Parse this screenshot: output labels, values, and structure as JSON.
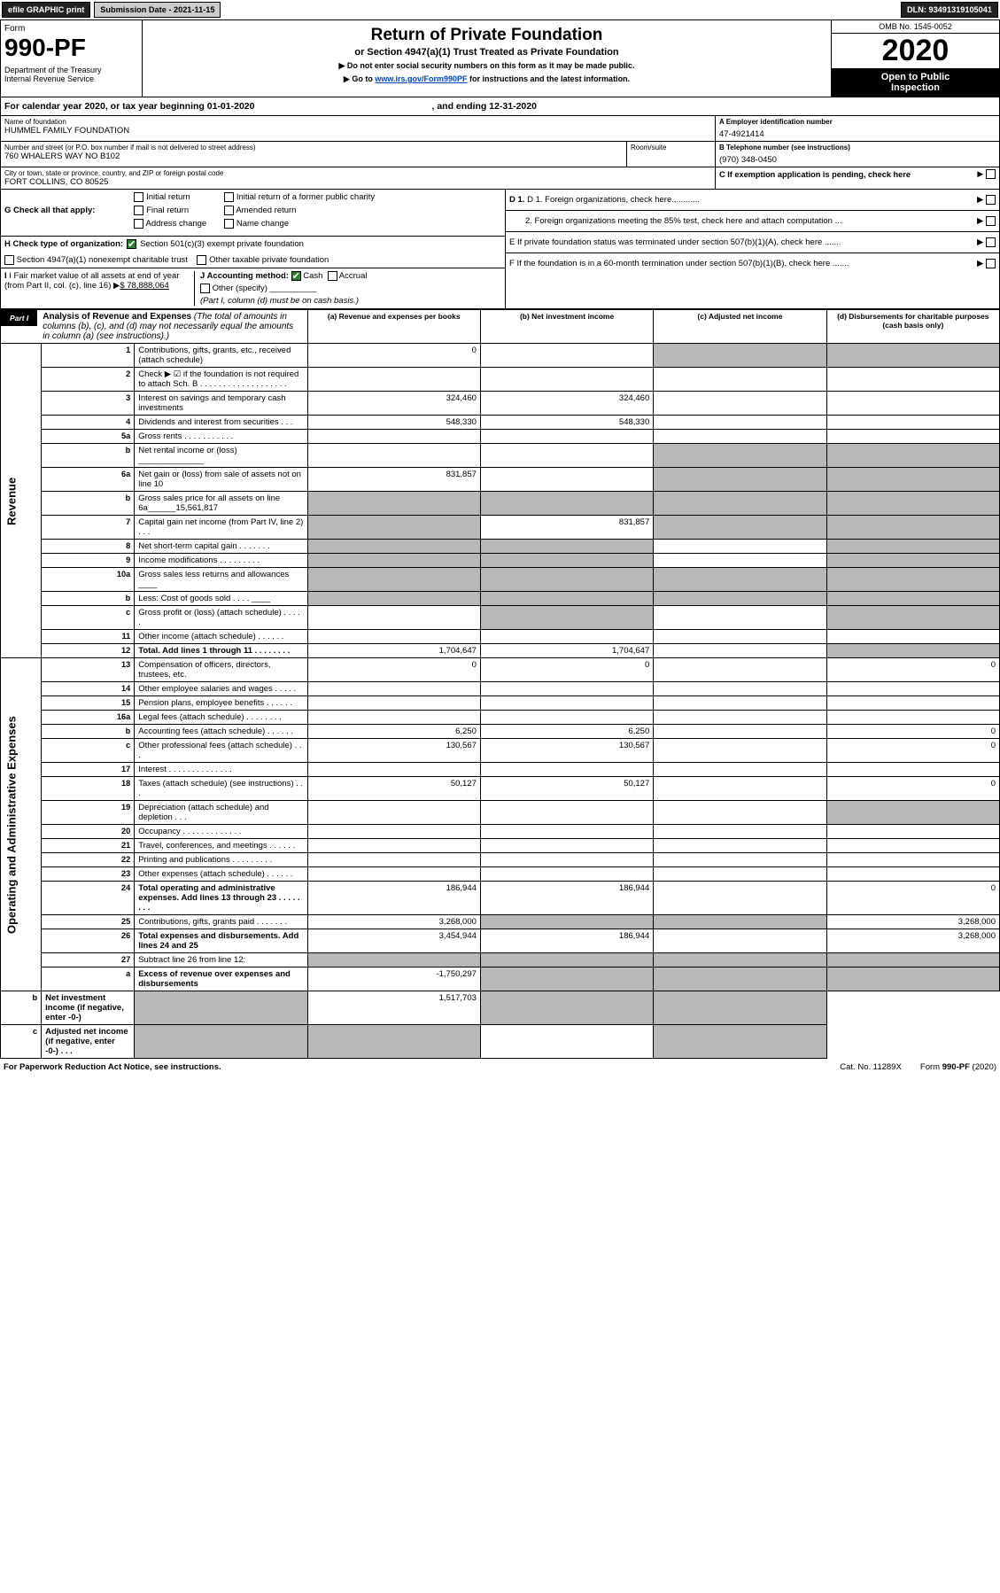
{
  "topbar": {
    "efile": "efile GRAPHIC print",
    "submission": "Submission Date - 2021-11-15",
    "dln": "DLN: 93491319105041"
  },
  "header": {
    "form_word": "Form",
    "form_number": "990-PF",
    "dept": "Department of the Treasury\nInternal Revenue Service",
    "title": "Return of Private Foundation",
    "subtitle": "or Section 4947(a)(1) Trust Treated as Private Foundation",
    "instr1": "▶ Do not enter social security numbers on this form as it may be made public.",
    "instr2_pre": "▶ Go to ",
    "instr2_link": "www.irs.gov/Form990PF",
    "instr2_post": " for instructions and the latest information.",
    "omb": "OMB No. 1545-0052",
    "year": "2020",
    "open": "Open to Public\nInspection"
  },
  "calyear": {
    "text": "For calendar year 2020, or tax year beginning 01-01-2020",
    "ending": ", and ending 12-31-2020"
  },
  "info": {
    "name_lbl": "Name of foundation",
    "name": "HUMMEL FAMILY FOUNDATION",
    "addr_lbl": "Number and street (or P.O. box number if mail is not delivered to street address)",
    "addr": "760 WHALERS WAY NO B102",
    "room_lbl": "Room/suite",
    "city_lbl": "City or town, state or province, country, and ZIP or foreign postal code",
    "city": "FORT COLLINS, CO  80525",
    "a_lbl": "A Employer identification number",
    "a_val": "47-4921414",
    "b_lbl": "B Telephone number (see instructions)",
    "b_val": "(970) 348-0450",
    "c_lbl": "C If exemption application is pending, check here"
  },
  "g": {
    "label": "G Check all that apply:",
    "initial": "Initial return",
    "initial_former": "Initial return of a former public charity",
    "final": "Final return",
    "amended": "Amended return",
    "address": "Address change",
    "name_change": "Name change"
  },
  "h": {
    "label": "H Check type of organization:",
    "opt1": "Section 501(c)(3) exempt private foundation",
    "opt2": "Section 4947(a)(1) nonexempt charitable trust",
    "opt3": "Other taxable private foundation"
  },
  "i": {
    "label": "I Fair market value of all assets at end of year (from Part II, col. (c), line 16)",
    "value": "$  78,888,064"
  },
  "j": {
    "label": "J Accounting method:",
    "cash": "Cash",
    "accrual": "Accrual",
    "other": "Other (specify)",
    "note": "(Part I, column (d) must be on cash basis.)"
  },
  "right": {
    "d1": "D 1. Foreign organizations, check here............",
    "d2": "2. Foreign organizations meeting the 85% test, check here and attach computation ...",
    "e": "E  If private foundation status was terminated under section 507(b)(1)(A), check here .......",
    "f": "F  If the foundation is in a 60-month termination under section 507(b)(1)(B), check here .......",
    "arrow": "▶"
  },
  "part1": {
    "tag": "Part I",
    "title": "Analysis of Revenue and Expenses",
    "sub": "(The total of amounts in columns (b), (c), and (d) may not necessarily equal the amounts in column (a) (see instructions).)",
    "col_a": "(a) Revenue and expenses per books",
    "col_b": "(b) Net investment income",
    "col_c": "(c) Adjusted net income",
    "col_d": "(d) Disbursements for charitable purposes (cash basis only)"
  },
  "sections": {
    "revenue": "Revenue",
    "expenses": "Operating and Administrative Expenses"
  },
  "rows": [
    {
      "n": "1",
      "d": "Contributions, gifts, grants, etc., received (attach schedule)",
      "a": "0",
      "b": "",
      "c": "g",
      "dd": "g"
    },
    {
      "n": "2",
      "d": "Check ▶ ☑ if the foundation is not required to attach Sch. B . . . . . . . . . . . . . . . . . . ."
    },
    {
      "n": "3",
      "d": "Interest on savings and temporary cash investments",
      "a": "324,460",
      "b": "324,460"
    },
    {
      "n": "4",
      "d": "Dividends and interest from securities  .  .  .",
      "a": "548,330",
      "b": "548,330"
    },
    {
      "n": "5a",
      "d": "Gross rents  .  .  .  .  .  .  .  .  .  .  ."
    },
    {
      "n": "b",
      "d": "Net rental income or (loss) ______________",
      "c": "g",
      "dd": "g"
    },
    {
      "n": "6a",
      "d": "Net gain or (loss) from sale of assets not on line 10",
      "a": "831,857",
      "c": "g",
      "dd": "g"
    },
    {
      "n": "b",
      "d": "Gross sales price for all assets on line 6a______15,561,817",
      "a": "g",
      "b": "g",
      "c": "g",
      "dd": "g"
    },
    {
      "n": "7",
      "d": "Capital gain net income (from Part IV, line 2)  .  .  .",
      "a": "g",
      "b": "831,857",
      "c": "g",
      "dd": "g"
    },
    {
      "n": "8",
      "d": "Net short-term capital gain  .  .  .  .  .  .  .",
      "a": "g",
      "b": "g",
      "dd": "g"
    },
    {
      "n": "9",
      "d": "Income modifications .  .  .  .  .  .  .  .  .",
      "a": "g",
      "b": "g",
      "dd": "g"
    },
    {
      "n": "10a",
      "d": "Gross sales less returns and allowances  ____",
      "a": "g",
      "b": "g",
      "c": "g",
      "dd": "g"
    },
    {
      "n": "b",
      "d": "Less: Cost of goods sold  .  .  .  .  ____",
      "a": "g",
      "b": "g",
      "c": "g",
      "dd": "g"
    },
    {
      "n": "c",
      "d": "Gross profit or (loss) (attach schedule)  .  .  .  .  .",
      "b": "g",
      "dd": "g"
    },
    {
      "n": "11",
      "d": "Other income (attach schedule)  .  .  .  .  .  ."
    },
    {
      "n": "12",
      "d": "Total. Add lines 1 through 11  .  .  .  .  .  .  .  .",
      "a": "1,704,647",
      "b": "1,704,647",
      "dd": "g",
      "bold": true
    },
    {
      "n": "13",
      "d": "Compensation of officers, directors, trustees, etc.",
      "a": "0",
      "b": "0",
      "dd": "0"
    },
    {
      "n": "14",
      "d": "Other employee salaries and wages  .  .  .  .  ."
    },
    {
      "n": "15",
      "d": "Pension plans, employee benefits .  .  .  .  .  ."
    },
    {
      "n": "16a",
      "d": "Legal fees (attach schedule) .  .  .  .  .  .  .  ."
    },
    {
      "n": "b",
      "d": "Accounting fees (attach schedule) .  .  .  .  .  .",
      "a": "6,250",
      "b": "6,250",
      "dd": "0"
    },
    {
      "n": "c",
      "d": "Other professional fees (attach schedule)  .  .  .",
      "a": "130,567",
      "b": "130,567",
      "dd": "0"
    },
    {
      "n": "17",
      "d": "Interest .  .  .  .  .  .  .  .  .  .  .  .  .  ."
    },
    {
      "n": "18",
      "d": "Taxes (attach schedule) (see instructions)  .  .  .",
      "a": "50,127",
      "b": "50,127",
      "dd": "0"
    },
    {
      "n": "19",
      "d": "Depreciation (attach schedule) and depletion  .  .  .",
      "dd": "g"
    },
    {
      "n": "20",
      "d": "Occupancy .  .  .  .  .  .  .  .  .  .  .  .  ."
    },
    {
      "n": "21",
      "d": "Travel, conferences, and meetings .  .  .  .  .  ."
    },
    {
      "n": "22",
      "d": "Printing and publications .  .  .  .  .  .  .  .  ."
    },
    {
      "n": "23",
      "d": "Other expenses (attach schedule)  .  .  .  .  .  ."
    },
    {
      "n": "24",
      "d": "Total operating and administrative expenses. Add lines 13 through 23  .  .  .  .  .  .  .  .",
      "a": "186,944",
      "b": "186,944",
      "dd": "0",
      "bold": true
    },
    {
      "n": "25",
      "d": "Contributions, gifts, grants paid  .  .  .  .  .  .  .",
      "a": "3,268,000",
      "b": "g",
      "c": "g",
      "dd": "3,268,000"
    },
    {
      "n": "26",
      "d": "Total expenses and disbursements. Add lines 24 and 25",
      "a": "3,454,944",
      "b": "186,944",
      "dd": "3,268,000",
      "bold": true
    },
    {
      "n": "27",
      "d": "Subtract line 26 from line 12:",
      "a": "g",
      "b": "g",
      "c": "g",
      "dd": "g"
    },
    {
      "n": "a",
      "d": "Excess of revenue over expenses and disbursements",
      "a": "-1,750,297",
      "b": "g",
      "c": "g",
      "dd": "g",
      "bold": true
    },
    {
      "n": "b",
      "d": "Net investment income (if negative, enter -0-)",
      "a": "g",
      "b": "1,517,703",
      "c": "g",
      "dd": "g",
      "bold": true
    },
    {
      "n": "c",
      "d": "Adjusted net income (if negative, enter -0-)  .  .  .",
      "a": "g",
      "b": "g",
      "dd": "g",
      "bold": true
    }
  ],
  "footer": {
    "left": "For Paperwork Reduction Act Notice, see instructions.",
    "mid": "Cat. No. 11289X",
    "right": "Form 990-PF (2020)"
  }
}
